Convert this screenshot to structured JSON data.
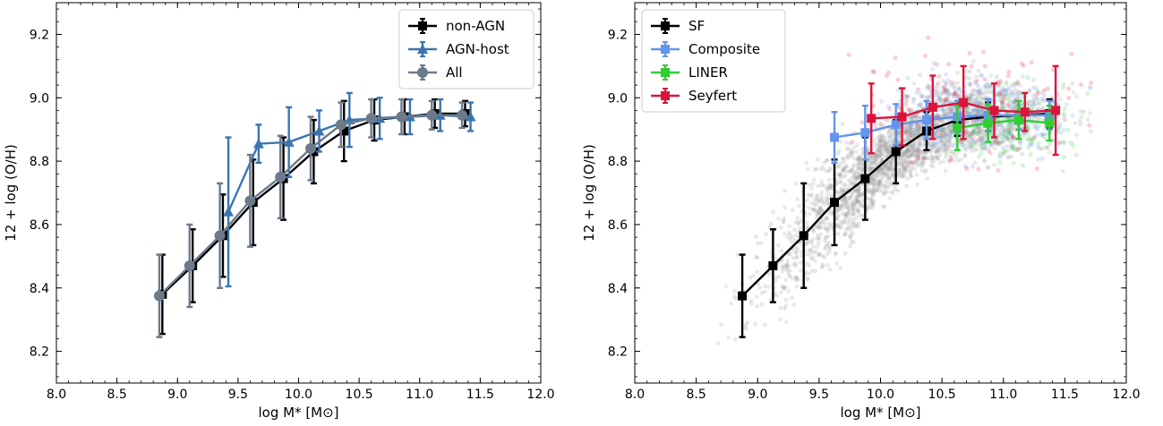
{
  "chart_data": [
    {
      "type": "line",
      "xlabel": "log M* [M⊙]",
      "ylabel": "12 + log (O/H)",
      "xlim": [
        8.0,
        12.0
      ],
      "ylim": [
        8.1,
        9.3
      ],
      "xticks": [
        "8.0",
        "8.5",
        "9.0",
        "9.5",
        "10.0",
        "10.5",
        "11.0",
        "11.5",
        "12.0"
      ],
      "yticks": [
        "8.2",
        "8.4",
        "8.6",
        "8.8",
        "9.0",
        "9.2"
      ],
      "legend_position": "top-right",
      "series": [
        {
          "name": "non-AGN",
          "color": "#000000",
          "marker": "square",
          "x": [
            8.875,
            9.125,
            9.375,
            9.625,
            9.875,
            10.125,
            10.375,
            10.625,
            10.875,
            11.125,
            11.375
          ],
          "y": [
            8.38,
            8.47,
            8.565,
            8.67,
            8.745,
            8.83,
            8.895,
            8.93,
            8.94,
            8.95,
            8.95
          ],
          "err": [
            0.125,
            0.115,
            0.13,
            0.135,
            0.13,
            0.1,
            0.095,
            0.065,
            0.055,
            0.045,
            0.04
          ]
        },
        {
          "name": "AGN-host",
          "color": "#3b75af",
          "marker": "triangle",
          "x": [
            9.42,
            9.67,
            9.92,
            10.17,
            10.42,
            10.67,
            10.92,
            11.17,
            11.42
          ],
          "y": [
            8.64,
            8.855,
            8.86,
            8.895,
            8.93,
            8.935,
            8.94,
            8.945,
            8.94
          ],
          "err": [
            0.235,
            0.06,
            0.11,
            0.065,
            0.085,
            0.065,
            0.055,
            0.05,
            0.045
          ]
        },
        {
          "name": "All",
          "color": "#6c7a8a",
          "marker": "circle",
          "x": [
            8.85,
            9.1,
            9.35,
            9.6,
            9.85,
            10.1,
            10.35,
            10.6,
            10.85,
            11.1,
            11.35
          ],
          "y": [
            8.375,
            8.47,
            8.565,
            8.675,
            8.75,
            8.84,
            8.915,
            8.935,
            8.94,
            8.945,
            8.945
          ],
          "err": [
            0.13,
            0.13,
            0.165,
            0.145,
            0.13,
            0.1,
            0.07,
            0.06,
            0.055,
            0.045,
            0.04
          ]
        }
      ]
    },
    {
      "type": "line",
      "xlabel": "log M* [M⊙]",
      "ylabel": "12 + log (O/H)",
      "xlim": [
        8.0,
        12.0
      ],
      "ylim": [
        8.1,
        9.3
      ],
      "xticks": [
        "8.0",
        "8.5",
        "9.0",
        "9.5",
        "10.0",
        "10.5",
        "11.0",
        "11.5",
        "12.0"
      ],
      "yticks": [
        "8.2",
        "8.4",
        "8.6",
        "8.8",
        "9.0",
        "9.2"
      ],
      "legend_position": "top-left",
      "scatter_background": true,
      "series": [
        {
          "name": "SF",
          "color": "#000000",
          "marker": "square",
          "x": [
            8.875,
            9.125,
            9.375,
            9.625,
            9.875,
            10.125,
            10.375,
            10.625,
            10.875,
            11.125,
            11.375
          ],
          "y": [
            8.375,
            8.47,
            8.565,
            8.67,
            8.745,
            8.83,
            8.895,
            8.93,
            8.94,
            8.945,
            8.95
          ],
          "err": [
            0.13,
            0.115,
            0.165,
            0.135,
            0.13,
            0.1,
            0.06,
            0.05,
            0.045,
            0.045,
            0.045
          ]
        },
        {
          "name": "Composite",
          "color": "#6495ed",
          "marker": "square",
          "x": [
            9.625,
            9.875,
            10.125,
            10.375,
            10.625,
            10.875,
            11.125,
            11.375
          ],
          "y": [
            8.875,
            8.89,
            8.915,
            8.93,
            8.94,
            8.945,
            8.945,
            8.945
          ],
          "err": [
            0.08,
            0.085,
            0.065,
            0.06,
            0.05,
            0.05,
            0.045,
            0.045
          ]
        },
        {
          "name": "LINER",
          "color": "#32cd32",
          "marker": "square",
          "x": [
            10.625,
            10.875,
            11.125,
            11.375
          ],
          "y": [
            8.905,
            8.92,
            8.93,
            8.92
          ],
          "err": [
            0.07,
            0.06,
            0.06,
            0.055
          ]
        },
        {
          "name": "Seyfert",
          "color": "#dc143c",
          "marker": "square",
          "x": [
            9.925,
            10.175,
            10.425,
            10.675,
            10.925,
            11.175,
            11.425
          ],
          "y": [
            8.935,
            8.94,
            8.97,
            8.985,
            8.96,
            8.955,
            8.96
          ],
          "err": [
            0.11,
            0.09,
            0.1,
            0.115,
            0.085,
            0.06,
            0.14
          ]
        }
      ]
    }
  ]
}
